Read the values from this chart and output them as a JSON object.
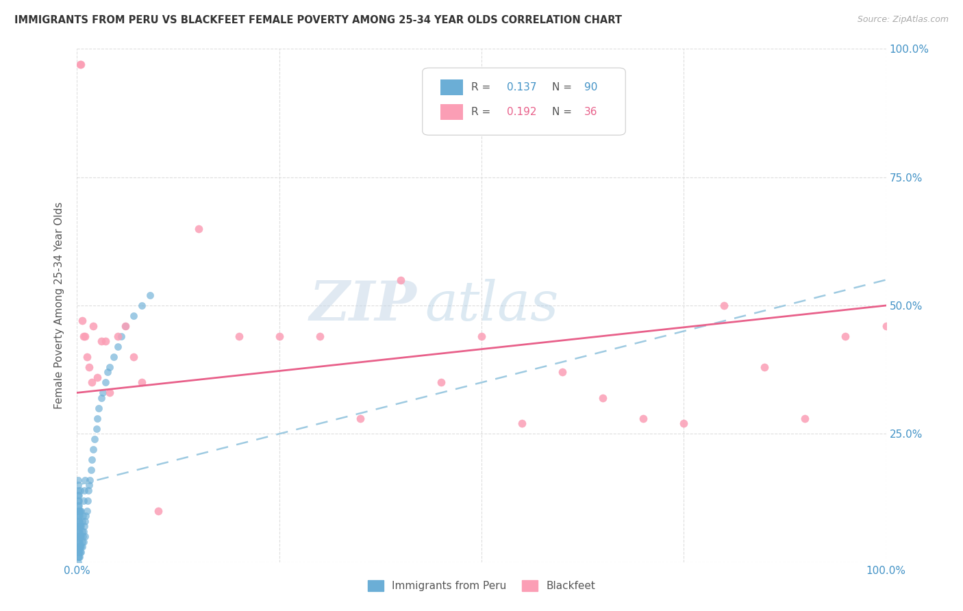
{
  "title": "IMMIGRANTS FROM PERU VS BLACKFEET FEMALE POVERTY AMONG 25-34 YEAR OLDS CORRELATION CHART",
  "source": "Source: ZipAtlas.com",
  "ylabel": "Female Poverty Among 25-34 Year Olds",
  "legend_label1": "Immigrants from Peru",
  "legend_label2": "Blackfeet",
  "R1": "0.137",
  "N1": "90",
  "R2": "0.192",
  "N2": "36",
  "color_blue": "#6baed6",
  "color_pink": "#fb9eb5",
  "color_blue_text": "#4292c6",
  "color_pink_text": "#e8608a",
  "color_blue_line": "#9ecae1",
  "color_pink_line": "#e8608a",
  "background_color": "#ffffff",
  "watermark_zip": "ZIP",
  "watermark_atlas": "atlas",
  "peru_x": [
    0.001,
    0.001,
    0.001,
    0.001,
    0.001,
    0.001,
    0.001,
    0.001,
    0.001,
    0.001,
    0.001,
    0.001,
    0.001,
    0.001,
    0.001,
    0.002,
    0.002,
    0.002,
    0.002,
    0.002,
    0.002,
    0.002,
    0.002,
    0.002,
    0.002,
    0.002,
    0.002,
    0.003,
    0.003,
    0.003,
    0.003,
    0.003,
    0.003,
    0.003,
    0.003,
    0.004,
    0.004,
    0.004,
    0.004,
    0.004,
    0.005,
    0.005,
    0.005,
    0.005,
    0.006,
    0.006,
    0.006,
    0.007,
    0.007,
    0.008,
    0.008,
    0.009,
    0.009,
    0.01,
    0.01,
    0.011,
    0.012,
    0.013,
    0.014,
    0.015,
    0.016,
    0.017,
    0.018,
    0.02,
    0.022,
    0.024,
    0.025,
    0.027,
    0.03,
    0.032,
    0.035,
    0.038,
    0.04,
    0.045,
    0.05,
    0.055,
    0.06,
    0.07,
    0.08,
    0.09,
    0.001,
    0.001,
    0.002,
    0.002,
    0.003,
    0.004,
    0.005,
    0.006,
    0.008,
    0.01
  ],
  "peru_y": [
    0.02,
    0.03,
    0.04,
    0.05,
    0.06,
    0.07,
    0.08,
    0.09,
    0.1,
    0.11,
    0.12,
    0.13,
    0.14,
    0.15,
    0.16,
    0.02,
    0.03,
    0.04,
    0.05,
    0.06,
    0.07,
    0.08,
    0.09,
    0.1,
    0.11,
    0.12,
    0.13,
    0.03,
    0.04,
    0.05,
    0.06,
    0.07,
    0.08,
    0.09,
    0.1,
    0.03,
    0.05,
    0.07,
    0.1,
    0.14,
    0.03,
    0.05,
    0.07,
    0.1,
    0.04,
    0.06,
    0.08,
    0.05,
    0.09,
    0.06,
    0.12,
    0.07,
    0.14,
    0.08,
    0.16,
    0.09,
    0.1,
    0.12,
    0.14,
    0.15,
    0.16,
    0.18,
    0.2,
    0.22,
    0.24,
    0.26,
    0.28,
    0.3,
    0.32,
    0.33,
    0.35,
    0.37,
    0.38,
    0.4,
    0.42,
    0.44,
    0.46,
    0.48,
    0.5,
    0.52,
    0.0,
    0.01,
    0.01,
    0.02,
    0.01,
    0.02,
    0.02,
    0.03,
    0.04,
    0.05
  ],
  "blackfeet_x": [
    0.004,
    0.005,
    0.006,
    0.008,
    0.01,
    0.012,
    0.015,
    0.018,
    0.02,
    0.025,
    0.03,
    0.035,
    0.04,
    0.05,
    0.06,
    0.07,
    0.08,
    0.1,
    0.15,
    0.2,
    0.25,
    0.3,
    0.35,
    0.4,
    0.45,
    0.5,
    0.55,
    0.6,
    0.65,
    0.7,
    0.75,
    0.8,
    0.85,
    0.9,
    0.95,
    1.0
  ],
  "blackfeet_y": [
    0.97,
    0.97,
    0.47,
    0.44,
    0.44,
    0.4,
    0.38,
    0.35,
    0.46,
    0.36,
    0.43,
    0.43,
    0.33,
    0.44,
    0.46,
    0.4,
    0.35,
    0.1,
    0.65,
    0.44,
    0.44,
    0.44,
    0.28,
    0.55,
    0.35,
    0.44,
    0.27,
    0.37,
    0.32,
    0.28,
    0.27,
    0.5,
    0.38,
    0.28,
    0.44,
    0.46
  ],
  "xlim": [
    0.0,
    1.0
  ],
  "ylim": [
    0.0,
    1.0
  ],
  "xticks": [
    0.0,
    0.25,
    0.5,
    0.75,
    1.0
  ],
  "yticks": [
    0.0,
    0.25,
    0.5,
    0.75,
    1.0
  ],
  "xtick_labels_show": [
    "0.0%",
    "",
    "",
    "",
    "100.0%"
  ],
  "ytick_labels_right": [
    "",
    "25.0%",
    "50.0%",
    "75.0%",
    "100.0%"
  ]
}
